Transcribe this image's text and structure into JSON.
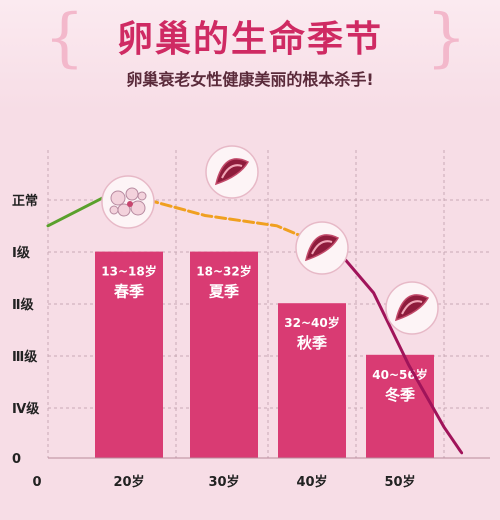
{
  "header": {
    "title": "卵巢的生命季节",
    "subtitle": "卵巢衰老女性健康美丽的根本杀手!"
  },
  "colors": {
    "bar": "#d93b73",
    "bar_label": "#ffffff",
    "grid": "#c9a9b5",
    "axis_text": "#222222",
    "curve_green": "#5aa02c",
    "curve_orange": "#f0a020",
    "curve_magenta": "#a0145a"
  },
  "chart_data": {
    "type": "bar",
    "x_origin_label": "0",
    "categories": [
      "20岁",
      "30岁",
      "40岁",
      "50岁"
    ],
    "y_levels": [
      "正常",
      "Ⅰ级",
      "Ⅱ级",
      "Ⅲ级",
      "Ⅳ级",
      "0"
    ],
    "values": [
      4,
      4,
      3,
      2
    ],
    "ylim": [
      0,
      5
    ],
    "bar_labels": [
      {
        "age": "13~18岁",
        "season": "春季"
      },
      {
        "age": "18~32岁",
        "season": "夏季"
      },
      {
        "age": "32~40岁",
        "season": "秋季"
      },
      {
        "age": "40~56岁",
        "season": "冬季"
      }
    ],
    "curve_segments": [
      {
        "color": "green",
        "points": [
          [
            0,
            4.5
          ],
          [
            15,
            5.1
          ],
          [
            22,
            5.0
          ]
        ]
      },
      {
        "color": "orange",
        "points": [
          [
            22,
            5.0
          ],
          [
            28,
            4.7
          ],
          [
            36,
            4.5
          ],
          [
            43,
            4.0
          ]
        ]
      },
      {
        "color": "magenta",
        "points": [
          [
            43,
            4.0
          ],
          [
            47,
            3.2
          ],
          [
            51,
            1.8
          ],
          [
            55,
            0.6
          ],
          [
            57,
            0.1
          ]
        ]
      }
    ],
    "icons": [
      "ovary-follicle-icon",
      "ovary-tissue-icon",
      "ovary-tissue-icon",
      "ovary-tissue-icon"
    ],
    "grid": true
  }
}
